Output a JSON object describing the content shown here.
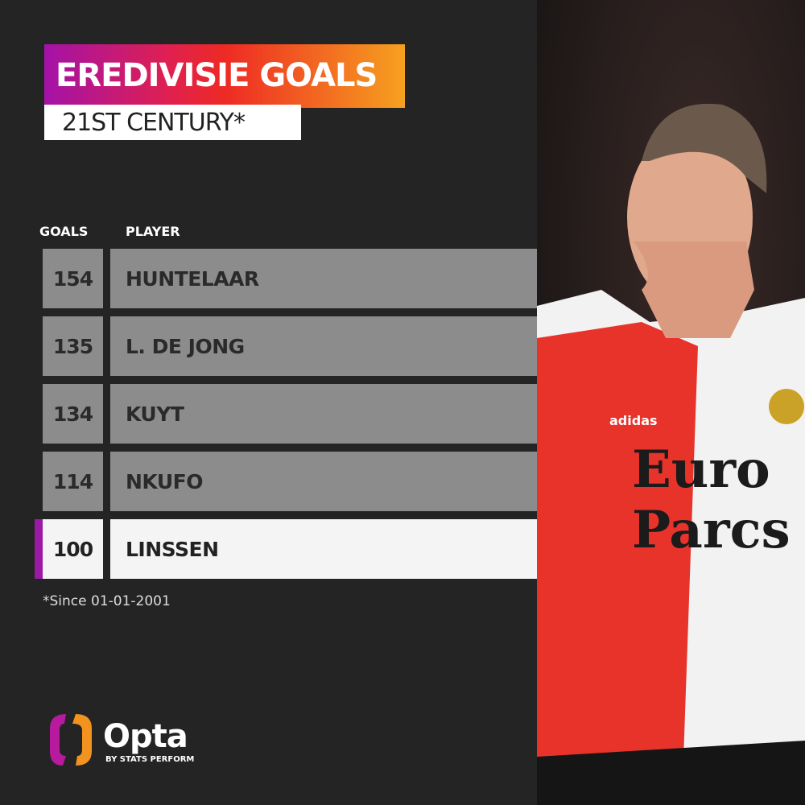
{
  "title": "EREDIVISIE GOALS",
  "subtitle": "21ST CENTURY*",
  "headers": {
    "goals": "GOALS",
    "player": "PLAYER"
  },
  "rows": [
    {
      "goals": "154",
      "player": "HUNTELAAR",
      "highlighted": false
    },
    {
      "goals": "135",
      "player": "L. DE JONG",
      "highlighted": false
    },
    {
      "goals": "134",
      "player": "KUYT",
      "highlighted": false
    },
    {
      "goals": "114",
      "player": "NKUFO",
      "highlighted": false
    },
    {
      "goals": "100",
      "player": "LINSSEN",
      "highlighted": true
    }
  ],
  "footnote": "*Since 01-01-2001",
  "brand": {
    "name": "Opta",
    "tagline": "BY STATS PERFORM"
  },
  "photo": {
    "shirt_sponsor": "Euro Parcs",
    "kit_brand": "adidas"
  },
  "colors": {
    "background": "#242424",
    "row": "#8c8c8c",
    "highlight_row": "#f4f4f4",
    "highlight_bar": "#9a1aa6",
    "gradient_start": "#a412a8",
    "gradient_end": "#f6a11f"
  }
}
